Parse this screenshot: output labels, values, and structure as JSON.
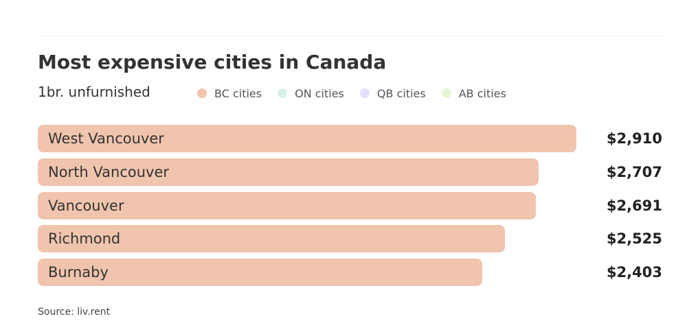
{
  "chart_data": {
    "type": "bar",
    "orientation": "horizontal",
    "title": "Most expensive cities in Canada",
    "subtitle": "1br. unfurnished",
    "categories": [
      "West Vancouver",
      "North Vancouver",
      "Vancouver",
      "Richmond",
      "Burnaby"
    ],
    "values": [
      2910,
      2707,
      2691,
      2525,
      2403
    ],
    "value_labels": [
      "$2,910",
      "$2,707",
      "$2,691",
      "$2,525",
      "$2,403"
    ],
    "bar_group": [
      "BC cities",
      "BC cities",
      "BC cities",
      "BC cities",
      "BC cities"
    ],
    "legend": [
      {
        "label": "BC cities",
        "color": "#f0c4ad"
      },
      {
        "label": "ON cities",
        "color": "#d6f1ea"
      },
      {
        "label": "QB cities",
        "color": "#e2e0fa"
      },
      {
        "label": "AB cities",
        "color": "#e6f6d6"
      }
    ],
    "legend_position": "top",
    "source": "Source: liv.rent",
    "grid": false
  }
}
